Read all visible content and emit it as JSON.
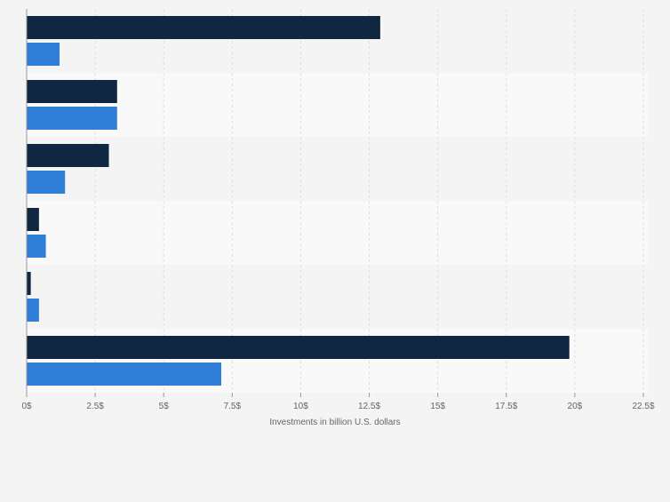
{
  "chart_data": {
    "type": "bar",
    "orientation": "horizontal",
    "categories": [
      "",
      "",
      "",
      "",
      "",
      ""
    ],
    "series": [
      {
        "name": "",
        "color": "#0f2741",
        "values": [
          12.9,
          3.3,
          3.0,
          0.45,
          0.15,
          19.8
        ]
      },
      {
        "name": "",
        "color": "#2f7ed8",
        "values": [
          1.2,
          3.3,
          1.4,
          0.7,
          0.45,
          7.1
        ]
      }
    ],
    "xlim": [
      0,
      22.5
    ],
    "xticks": [
      0,
      2.5,
      5,
      7.5,
      10,
      12.5,
      15,
      17.5,
      20,
      22.5
    ],
    "xtick_labels": [
      "0$",
      "2.5$",
      "5$",
      "7.5$",
      "10$",
      "12.5$",
      "15$",
      "17.5$",
      "20$",
      "22.5$"
    ],
    "xlabel": "Investments in billion U.S. dollars",
    "ylabel": "",
    "title": "",
    "grid": "vertical",
    "band_colors": [
      "#f4f4f4",
      "#f9f9f9"
    ]
  }
}
